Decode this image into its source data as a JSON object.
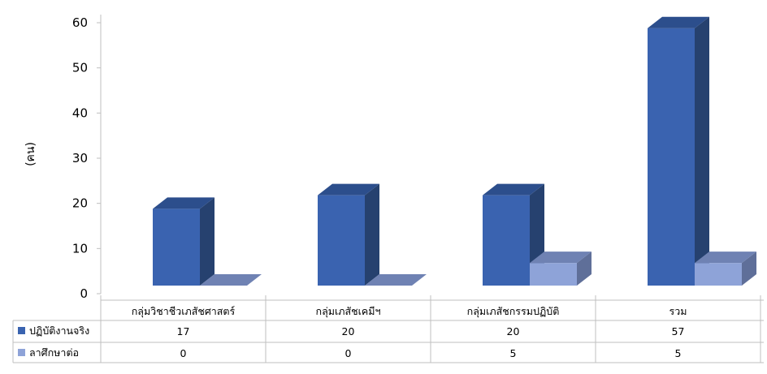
{
  "chart_data": {
    "type": "bar",
    "ylabel": "(คน)",
    "ylim": [
      0,
      60
    ],
    "yticks": [
      0,
      10,
      20,
      30,
      40,
      50,
      60
    ],
    "categories": [
      "กลุ่มวิชาชีวเภสัชศาสตร์",
      "กลุ่มเภสัชเคมีฯ",
      "กลุ่มเภสัชกรรมปฏิบัติ",
      "รวม"
    ],
    "series": [
      {
        "name": "ปฏิบัติงานจริง",
        "values": [
          17,
          20,
          20,
          57
        ],
        "color": "#3a63b0",
        "side_color": "#26416f",
        "top_color": "#2c4e8c"
      },
      {
        "name": "ลาศึกษาต่อ",
        "values": [
          0,
          0,
          5,
          5
        ],
        "color": "#8ea3d8",
        "side_color": "#5f6f99",
        "top_color": "#6f82b3"
      }
    ],
    "data_table": true,
    "grid": false
  }
}
